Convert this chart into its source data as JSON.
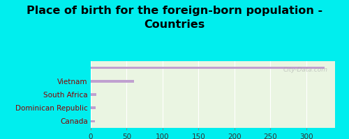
{
  "title": "Place of birth for the foreign-born population -\nCountries",
  "categories": [
    "",
    "Vietnam",
    "South Africa",
    "Dominican Republic",
    "Canada"
  ],
  "values": [
    325,
    60,
    8,
    7,
    6
  ],
  "bar_color": "#c0a0d0",
  "background_outer": "#00eeee",
  "background_plot": "#eaf5e2",
  "xlim": [
    0,
    340
  ],
  "xticks": [
    0,
    50,
    100,
    150,
    200,
    250,
    300
  ],
  "title_fontsize": 11.5,
  "label_fontsize": 7.5,
  "tick_fontsize": 7.5,
  "watermark": "City-Data.com"
}
